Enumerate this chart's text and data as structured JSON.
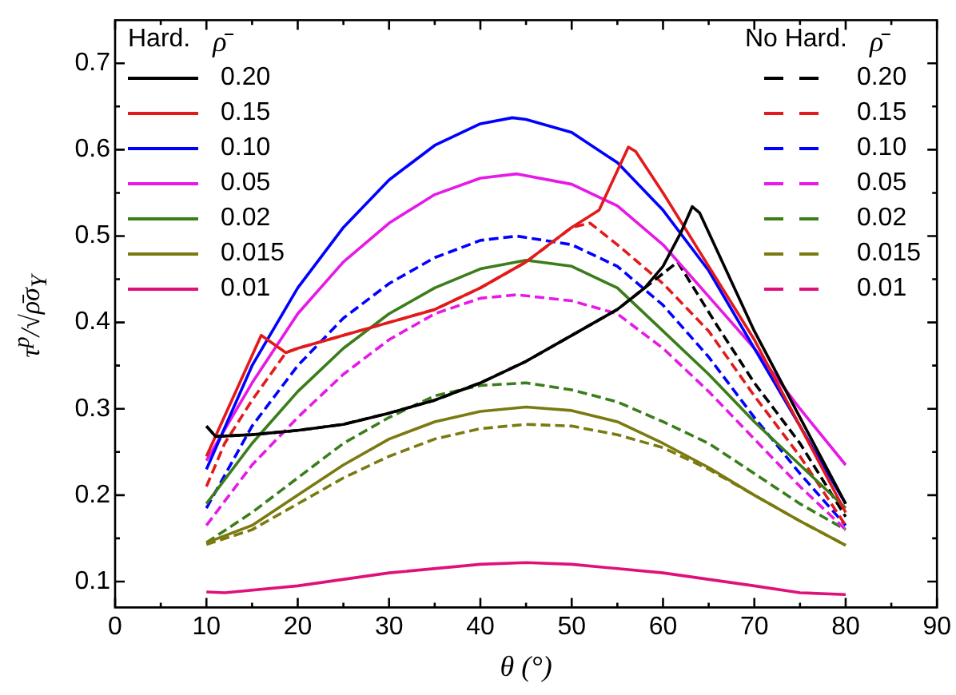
{
  "chart_data": {
    "type": "line",
    "xlabel": "θ (°)",
    "ylabel": "τ$^{p}$/√ρ̄σ$_{Y}$",
    "legend_title": "ρ̄",
    "annotations": [
      "Hard.",
      "No Hard."
    ],
    "xlim": [
      0,
      90
    ],
    "ylim": [
      0.07,
      0.75
    ],
    "xticks": [
      0,
      {
        "value": 5,
        "label": null
      },
      10,
      {
        "value": 15,
        "label": null
      },
      20,
      {
        "value": 25,
        "label": null
      },
      30,
      {
        "value": 35,
        "label": null
      },
      40,
      {
        "value": 45,
        "label": null
      },
      50,
      {
        "value": 55,
        "label": null
      },
      60,
      {
        "value": 65,
        "label": null
      },
      70,
      {
        "value": 75,
        "label": null
      },
      80,
      {
        "value": 85,
        "label": null
      },
      90
    ],
    "yticks": [
      0.1,
      {
        "value": 0.15,
        "label": null
      },
      0.2,
      {
        "value": 0.25,
        "label": null
      },
      0.3,
      {
        "value": 0.35,
        "label": null
      },
      0.4,
      {
        "value": 0.45,
        "label": null
      },
      0.5,
      {
        "value": 0.55,
        "label": null
      },
      0.6,
      {
        "value": 0.65,
        "label": null
      },
      0.7
    ],
    "grid": false,
    "legend": "top",
    "marker": "none",
    "series": [
      {
        "name": "0.20",
        "color": "#000000",
        "line_style": "solid",
        "x": [
          10,
          11,
          15,
          20,
          25,
          30,
          35,
          40,
          45,
          50,
          55,
          58,
          60,
          62,
          63.2,
          64,
          70,
          75,
          80
        ],
        "values": [
          0.28,
          0.268,
          0.27,
          0.275,
          0.282,
          0.295,
          0.31,
          0.33,
          0.355,
          0.385,
          0.415,
          0.44,
          0.465,
          0.505,
          0.534,
          0.527,
          0.39,
          0.29,
          0.19
        ]
      },
      {
        "name": "0.15",
        "color": "#e31a1c",
        "line_style": "solid",
        "x": [
          10,
          16,
          18.7,
          20,
          25,
          30,
          35,
          40,
          45,
          50,
          53,
          56.2,
          57,
          60,
          65,
          70,
          75,
          80
        ],
        "values": [
          0.245,
          0.385,
          0.365,
          0.37,
          0.385,
          0.4,
          0.415,
          0.44,
          0.47,
          0.51,
          0.53,
          0.603,
          0.598,
          0.55,
          0.465,
          0.38,
          0.28,
          0.18
        ]
      },
      {
        "name": "0.10",
        "color": "#0000ff",
        "line_style": "solid",
        "x": [
          10,
          15,
          20,
          25,
          30,
          35,
          40,
          43.5,
          45,
          50,
          55,
          60,
          65,
          70,
          75,
          80
        ],
        "values": [
          0.23,
          0.35,
          0.44,
          0.51,
          0.565,
          0.605,
          0.63,
          0.637,
          0.635,
          0.62,
          0.585,
          0.53,
          0.46,
          0.37,
          0.28,
          0.19
        ]
      },
      {
        "name": "0.05",
        "color": "#e619e6",
        "line_style": "solid",
        "x": [
          10,
          15,
          20,
          25,
          30,
          35,
          40,
          44,
          50,
          55,
          60,
          65,
          70,
          75,
          80
        ],
        "values": [
          0.24,
          0.33,
          0.41,
          0.47,
          0.515,
          0.548,
          0.567,
          0.572,
          0.56,
          0.535,
          0.49,
          0.43,
          0.37,
          0.3,
          0.235
        ]
      },
      {
        "name": "0.02",
        "color": "#3a7d1a",
        "line_style": "solid",
        "x": [
          10,
          15,
          20,
          25,
          30,
          35,
          40,
          45,
          50,
          55,
          60,
          65,
          70,
          75,
          80
        ],
        "values": [
          0.19,
          0.26,
          0.32,
          0.37,
          0.41,
          0.44,
          0.462,
          0.472,
          0.465,
          0.44,
          0.39,
          0.34,
          0.285,
          0.235,
          0.185
        ]
      },
      {
        "name": "0.015",
        "color": "#7a7a10",
        "line_style": "solid",
        "x": [
          10,
          15,
          20,
          25,
          30,
          35,
          40,
          45,
          50,
          55,
          60,
          65,
          70,
          75,
          80
        ],
        "values": [
          0.145,
          0.165,
          0.2,
          0.235,
          0.265,
          0.285,
          0.297,
          0.302,
          0.298,
          0.285,
          0.26,
          0.232,
          0.2,
          0.17,
          0.142
        ]
      },
      {
        "name": "0.01",
        "color": "#e0107a",
        "line_style": "solid",
        "x": [
          10,
          12,
          20,
          30,
          40,
          45,
          50,
          60,
          70,
          75,
          80
        ],
        "values": [
          0.088,
          0.087,
          0.095,
          0.11,
          0.12,
          0.122,
          0.12,
          0.11,
          0.095,
          0.087,
          0.085
        ]
      },
      {
        "name": "0.20",
        "color": "#000000",
        "line_style": "dashed",
        "x": [
          10,
          11,
          15,
          20,
          25,
          30,
          35,
          40,
          45,
          50,
          55,
          58,
          61.6,
          66,
          70,
          75,
          80
        ],
        "values": [
          0.28,
          0.268,
          0.27,
          0.275,
          0.282,
          0.295,
          0.31,
          0.33,
          0.355,
          0.385,
          0.415,
          0.44,
          0.47,
          0.395,
          0.33,
          0.26,
          0.175
        ]
      },
      {
        "name": "0.15",
        "color": "#e31a1c",
        "line_style": "dashed",
        "x": [
          10,
          12,
          15,
          17.5,
          18.7,
          20,
          25,
          30,
          35,
          40,
          45,
          50,
          52,
          55,
          60,
          65,
          70,
          75,
          80
        ],
        "values": [
          0.21,
          0.26,
          0.31,
          0.347,
          0.365,
          0.37,
          0.385,
          0.4,
          0.415,
          0.44,
          0.47,
          0.51,
          0.515,
          0.49,
          0.445,
          0.39,
          0.315,
          0.245,
          0.165
        ]
      },
      {
        "name": "0.10",
        "color": "#0000ff",
        "line_style": "dashed",
        "x": [
          10,
          15,
          20,
          25,
          30,
          35,
          40,
          44,
          50,
          55,
          60,
          65,
          70,
          75,
          80
        ],
        "values": [
          0.185,
          0.28,
          0.35,
          0.405,
          0.445,
          0.475,
          0.495,
          0.5,
          0.49,
          0.465,
          0.42,
          0.36,
          0.29,
          0.225,
          0.165
        ]
      },
      {
        "name": "0.05",
        "color": "#e619e6",
        "line_style": "dashed",
        "x": [
          10,
          15,
          20,
          25,
          30,
          35,
          40,
          44,
          50,
          55,
          60,
          65,
          70,
          75,
          80
        ],
        "values": [
          0.165,
          0.235,
          0.29,
          0.34,
          0.38,
          0.41,
          0.428,
          0.432,
          0.425,
          0.41,
          0.37,
          0.32,
          0.265,
          0.21,
          0.16
        ]
      },
      {
        "name": "0.02",
        "color": "#3a7d1a",
        "line_style": "dashed",
        "x": [
          10,
          15,
          20,
          25,
          30,
          35,
          40,
          45,
          50,
          55,
          60,
          65,
          70,
          75,
          80
        ],
        "values": [
          0.145,
          0.18,
          0.22,
          0.26,
          0.29,
          0.315,
          0.327,
          0.33,
          0.322,
          0.308,
          0.285,
          0.26,
          0.225,
          0.19,
          0.16
        ]
      },
      {
        "name": "0.015",
        "color": "#7a7a10",
        "line_style": "dashed",
        "x": [
          10,
          15,
          20,
          25,
          30,
          35,
          40,
          45,
          50,
          55,
          60,
          65,
          70,
          75,
          80
        ],
        "values": [
          0.143,
          0.16,
          0.19,
          0.22,
          0.245,
          0.265,
          0.277,
          0.282,
          0.28,
          0.27,
          0.255,
          0.23,
          0.2,
          0.17,
          0.142
        ]
      },
      {
        "name": "0.01",
        "color": "#e0107a",
        "line_style": "dashed"
      }
    ]
  }
}
